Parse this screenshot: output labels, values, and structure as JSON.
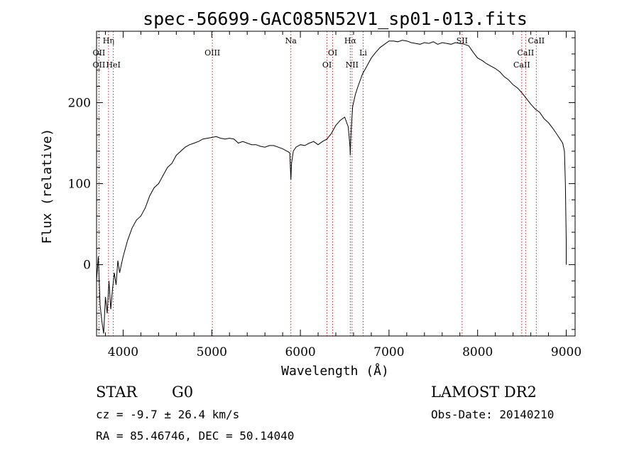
{
  "chart_data": {
    "type": "line",
    "title": "spec-56699-GAC085N52V1_sp01-013.fits",
    "xlabel": "Wavelength (Å)",
    "ylabel": "Flux (relative)",
    "xlim": [
      3700,
      9100
    ],
    "ylim": [
      -88,
      288
    ],
    "x_ticks": [
      4000,
      5000,
      6000,
      7000,
      8000,
      9000
    ],
    "y_ticks": [
      0,
      100,
      200
    ],
    "series": [
      {
        "color": "#000000",
        "x": [
          3700,
          3720,
          3740,
          3760,
          3780,
          3800,
          3820,
          3840,
          3860,
          3880,
          3900,
          3920,
          3940,
          3960,
          3980,
          4000,
          4050,
          4100,
          4150,
          4200,
          4250,
          4300,
          4350,
          4400,
          4450,
          4500,
          4550,
          4600,
          4650,
          4700,
          4750,
          4800,
          4850,
          4900,
          4950,
          5000,
          5050,
          5100,
          5150,
          5200,
          5250,
          5300,
          5350,
          5400,
          5450,
          5500,
          5550,
          5600,
          5650,
          5700,
          5750,
          5800,
          5850,
          5880,
          5893,
          5900,
          5920,
          5950,
          6000,
          6050,
          6100,
          6150,
          6200,
          6250,
          6300,
          6350,
          6400,
          6450,
          6500,
          6540,
          6560,
          6563,
          6570,
          6590,
          6620,
          6650,
          6700,
          6750,
          6800,
          6850,
          6900,
          6950,
          7000,
          7050,
          7100,
          7150,
          7200,
          7250,
          7300,
          7350,
          7400,
          7450,
          7500,
          7550,
          7600,
          7650,
          7700,
          7750,
          7800,
          7850,
          7900,
          7950,
          8000,
          8050,
          8100,
          8150,
          8200,
          8250,
          8300,
          8350,
          8400,
          8450,
          8500,
          8550,
          8600,
          8650,
          8700,
          8750,
          8800,
          8850,
          8900,
          8930,
          8960,
          8980,
          8990,
          9000,
          9000
        ],
        "y": [
          -20,
          10,
          -50,
          -70,
          -85,
          -40,
          -60,
          -20,
          -55,
          -30,
          -10,
          -25,
          5,
          -10,
          0,
          10,
          30,
          45,
          55,
          60,
          70,
          85,
          95,
          100,
          110,
          120,
          125,
          135,
          140,
          145,
          148,
          150,
          152,
          155,
          156,
          157,
          158,
          156,
          155,
          156,
          155,
          150,
          152,
          150,
          148,
          148,
          146,
          145,
          147,
          147,
          145,
          143,
          140,
          138,
          105,
          125,
          140,
          145,
          148,
          147,
          150,
          152,
          148,
          152,
          155,
          162,
          172,
          178,
          182,
          170,
          145,
          135,
          160,
          195,
          210,
          220,
          235,
          245,
          255,
          262,
          268,
          272,
          276,
          276,
          275,
          277,
          276,
          274,
          273,
          272,
          274,
          273,
          275,
          272,
          274,
          273,
          272,
          274,
          273,
          272,
          270,
          262,
          255,
          252,
          248,
          245,
          242,
          238,
          232,
          228,
          222,
          218,
          212,
          205,
          198,
          192,
          188,
          180,
          175,
          168,
          160,
          155,
          150,
          140,
          100,
          30,
          0
        ]
      }
    ],
    "line_markers": [
      {
        "x": 3835,
        "label": "Hη",
        "row": 0
      },
      {
        "x": 3727,
        "label": "OII",
        "row": 1
      },
      {
        "x": 3727,
        "label": "OII",
        "row": 2
      },
      {
        "x": 3889,
        "label": "HeI",
        "row": 2
      },
      {
        "x": 5007,
        "label": "OIII",
        "row": 1
      },
      {
        "x": 5893,
        "label": "Na",
        "row": 0
      },
      {
        "x": 6364,
        "label": "OI",
        "row": 1
      },
      {
        "x": 6300,
        "label": "OI",
        "row": 2
      },
      {
        "x": 6563,
        "label": "Hα",
        "row": 0
      },
      {
        "x": 6583,
        "label": "NII",
        "row": 2
      },
      {
        "x": 6708,
        "label": "Li",
        "row": 1
      },
      {
        "x": 7825,
        "label": "SII",
        "row": 0
      },
      {
        "x": 8662,
        "label": "CaII",
        "row": 0
      },
      {
        "x": 8542,
        "label": "CaII",
        "row": 1
      },
      {
        "x": 8498,
        "label": "CaII",
        "row": 2
      }
    ]
  },
  "info": {
    "class": "STAR",
    "subclass": "G0",
    "survey": "LAMOST DR2",
    "cz": "cz = -9.7 ± 26.4 km/s",
    "obs_date": "Obs-Date: 20140210",
    "radec": "RA =  85.46746, DEC =  50.14040"
  }
}
